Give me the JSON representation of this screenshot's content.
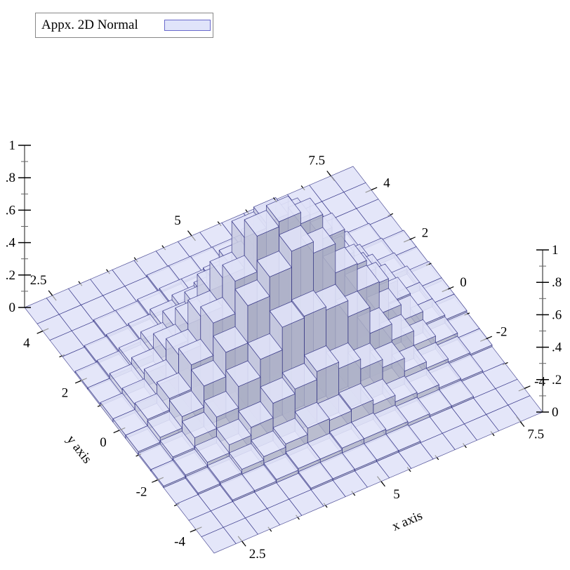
{
  "legend": {
    "label": "Appx. 2D Normal",
    "swatch_color": "#e0e4fa",
    "swatch_border": "#6a6acc"
  },
  "chart_data": {
    "type": "bar",
    "subtype": "3d-histogram",
    "xlabel": "x axis",
    "ylabel": "y axis",
    "xlim": [
      2.0,
      7.9
    ],
    "ylim": [
      -4.95,
      4.95
    ],
    "zlim": [
      0,
      1
    ],
    "x_bins": 15,
    "y_bins": 15,
    "x_ticks": [
      {
        "value": 2.5,
        "label": "2.5"
      },
      {
        "value": 5,
        "label": "5"
      },
      {
        "value": 7.5,
        "label": "7.5"
      }
    ],
    "y_ticks": [
      {
        "value": -4,
        "label": "-4"
      },
      {
        "value": -2,
        "label": "-2"
      },
      {
        "value": 0,
        "label": "0"
      },
      {
        "value": 2,
        "label": "2"
      },
      {
        "value": 4,
        "label": "4"
      }
    ],
    "z_ticks": [
      {
        "value": 0,
        "label": "0"
      },
      {
        "value": 0.2,
        "label": ".2"
      },
      {
        "value": 0.4,
        "label": ".4"
      },
      {
        "value": 0.6,
        "label": ".6"
      },
      {
        "value": 0.8,
        "label": ".8"
      },
      {
        "value": 1,
        "label": "1"
      }
    ],
    "colors": {
      "fill": "#e0e4fa",
      "edge": "#20207a"
    },
    "values": [
      [
        0,
        0,
        0,
        0,
        0,
        0,
        0,
        0,
        0,
        0,
        0,
        0,
        0,
        0,
        0
      ],
      [
        0,
        0,
        0,
        0,
        0,
        0.01,
        0.01,
        0.01,
        0.01,
        0.01,
        0,
        0,
        0,
        0,
        0
      ],
      [
        0,
        0,
        0.01,
        0.01,
        0.02,
        0.03,
        0.03,
        0.04,
        0.04,
        0.03,
        0.02,
        0.01,
        0.01,
        0,
        0
      ],
      [
        0,
        0.01,
        0.02,
        0.04,
        0.06,
        0.08,
        0.12,
        0.11,
        0.12,
        0.09,
        0.05,
        0.04,
        0.02,
        0.01,
        0
      ],
      [
        0.01,
        0.02,
        0.04,
        0.09,
        0.14,
        0.23,
        0.26,
        0.31,
        0.27,
        0.21,
        0.16,
        0.08,
        0.04,
        0.02,
        0.01
      ],
      [
        0.01,
        0.03,
        0.09,
        0.16,
        0.29,
        0.4,
        0.54,
        0.55,
        0.53,
        0.43,
        0.27,
        0.17,
        0.08,
        0.04,
        0.01
      ],
      [
        0.02,
        0.05,
        0.12,
        0.25,
        0.4,
        0.63,
        0.75,
        0.85,
        0.78,
        0.6,
        0.43,
        0.23,
        0.13,
        0.05,
        0.02
      ],
      [
        0.02,
        0.06,
        0.13,
        0.28,
        0.48,
        0.68,
        0.9,
        0.93,
        0.86,
        0.71,
        0.46,
        0.29,
        0.14,
        0.05,
        0.02
      ],
      [
        0.02,
        0.05,
        0.11,
        0.24,
        0.42,
        0.6,
        0.79,
        0.82,
        0.76,
        0.62,
        0.41,
        0.25,
        0.12,
        0.05,
        0.02
      ],
      [
        0.01,
        0.04,
        0.08,
        0.17,
        0.27,
        0.42,
        0.51,
        0.58,
        0.52,
        0.41,
        0.29,
        0.16,
        0.08,
        0.03,
        0.01
      ],
      [
        0.01,
        0.02,
        0.04,
        0.08,
        0.15,
        0.21,
        0.28,
        0.29,
        0.28,
        0.22,
        0.14,
        0.09,
        0.04,
        0.02,
        0.01
      ],
      [
        0,
        0.01,
        0.02,
        0.03,
        0.06,
        0.09,
        0.11,
        0.13,
        0.11,
        0.09,
        0.06,
        0.03,
        0.02,
        0.01,
        0
      ],
      [
        0,
        0,
        0.01,
        0.01,
        0.02,
        0.03,
        0.03,
        0.04,
        0.03,
        0.03,
        0.02,
        0.01,
        0,
        0,
        0
      ],
      [
        0,
        0,
        0,
        0,
        0,
        0.01,
        0.01,
        0.01,
        0.01,
        0.01,
        0,
        0,
        0,
        0,
        0
      ],
      [
        0,
        0,
        0,
        0,
        0,
        0,
        0,
        0,
        0,
        0,
        0,
        0,
        0,
        0,
        0
      ]
    ]
  }
}
